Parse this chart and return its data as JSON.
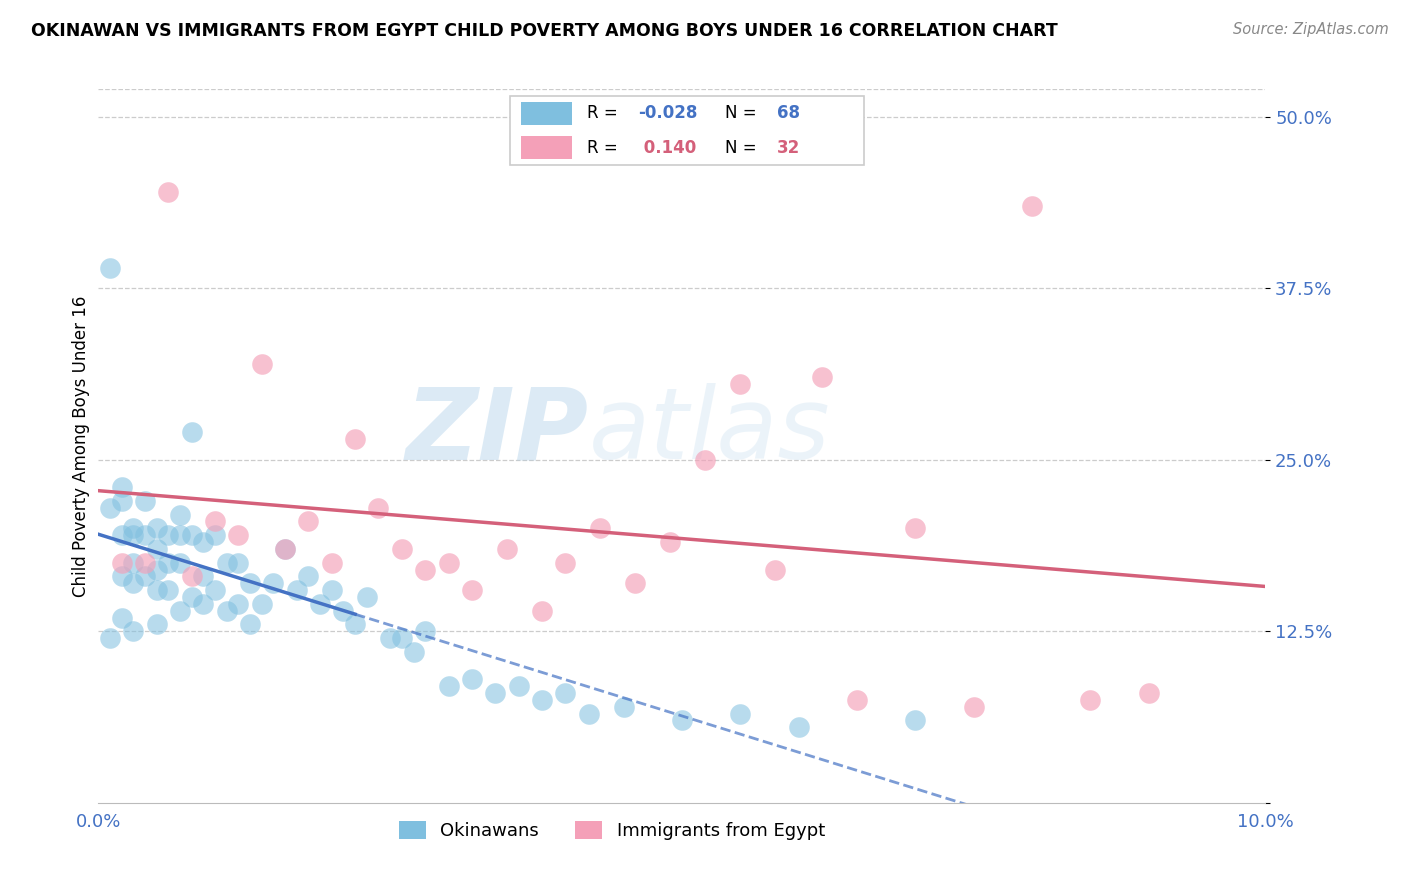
{
  "title": "OKINAWAN VS IMMIGRANTS FROM EGYPT CHILD POVERTY AMONG BOYS UNDER 16 CORRELATION CHART",
  "source": "Source: ZipAtlas.com",
  "ylabel": "Child Poverty Among Boys Under 16",
  "xmin": 0.0,
  "xmax": 0.1,
  "ymin": 0.0,
  "ymax": 0.52,
  "yticks": [
    0.0,
    0.125,
    0.25,
    0.375,
    0.5
  ],
  "ytick_labels": [
    "",
    "12.5%",
    "25.0%",
    "37.5%",
    "50.0%"
  ],
  "xticks": [
    0.0,
    0.02,
    0.04,
    0.06,
    0.08,
    0.1
  ],
  "xtick_labels": [
    "0.0%",
    "",
    "",
    "",
    "",
    "10.0%"
  ],
  "blue_color": "#7fbfdf",
  "pink_color": "#f4a0b8",
  "blue_line_color": "#4472c4",
  "pink_line_color": "#d4607a",
  "blue_R": -0.028,
  "pink_R": 0.14,
  "blue_N": 68,
  "pink_N": 32,
  "watermark_zip": "ZIP",
  "watermark_atlas": "atlas",
  "blue_x": [
    0.001,
    0.001,
    0.001,
    0.002,
    0.002,
    0.002,
    0.002,
    0.002,
    0.003,
    0.003,
    0.003,
    0.003,
    0.003,
    0.004,
    0.004,
    0.004,
    0.005,
    0.005,
    0.005,
    0.005,
    0.005,
    0.006,
    0.006,
    0.006,
    0.007,
    0.007,
    0.007,
    0.007,
    0.008,
    0.008,
    0.008,
    0.009,
    0.009,
    0.009,
    0.01,
    0.01,
    0.011,
    0.011,
    0.012,
    0.012,
    0.013,
    0.013,
    0.014,
    0.015,
    0.016,
    0.017,
    0.018,
    0.019,
    0.02,
    0.021,
    0.022,
    0.023,
    0.025,
    0.026,
    0.027,
    0.028,
    0.03,
    0.032,
    0.034,
    0.036,
    0.038,
    0.04,
    0.042,
    0.045,
    0.05,
    0.055,
    0.06,
    0.07
  ],
  "blue_y": [
    0.39,
    0.215,
    0.12,
    0.23,
    0.22,
    0.195,
    0.165,
    0.135,
    0.2,
    0.195,
    0.175,
    0.16,
    0.125,
    0.22,
    0.195,
    0.165,
    0.2,
    0.185,
    0.17,
    0.155,
    0.13,
    0.195,
    0.175,
    0.155,
    0.21,
    0.195,
    0.175,
    0.14,
    0.27,
    0.195,
    0.15,
    0.19,
    0.165,
    0.145,
    0.195,
    0.155,
    0.175,
    0.14,
    0.175,
    0.145,
    0.16,
    0.13,
    0.145,
    0.16,
    0.185,
    0.155,
    0.165,
    0.145,
    0.155,
    0.14,
    0.13,
    0.15,
    0.12,
    0.12,
    0.11,
    0.125,
    0.085,
    0.09,
    0.08,
    0.085,
    0.075,
    0.08,
    0.065,
    0.07,
    0.06,
    0.065,
    0.055,
    0.06
  ],
  "pink_x": [
    0.002,
    0.004,
    0.006,
    0.008,
    0.01,
    0.012,
    0.014,
    0.016,
    0.018,
    0.02,
    0.022,
    0.024,
    0.026,
    0.028,
    0.03,
    0.032,
    0.035,
    0.038,
    0.04,
    0.043,
    0.046,
    0.049,
    0.052,
    0.055,
    0.058,
    0.062,
    0.065,
    0.07,
    0.075,
    0.08,
    0.085,
    0.09
  ],
  "pink_y": [
    0.175,
    0.175,
    0.445,
    0.165,
    0.205,
    0.195,
    0.32,
    0.185,
    0.205,
    0.175,
    0.265,
    0.215,
    0.185,
    0.17,
    0.175,
    0.155,
    0.185,
    0.14,
    0.175,
    0.2,
    0.16,
    0.19,
    0.25,
    0.305,
    0.17,
    0.31,
    0.075,
    0.2,
    0.07,
    0.435,
    0.075,
    0.08
  ]
}
